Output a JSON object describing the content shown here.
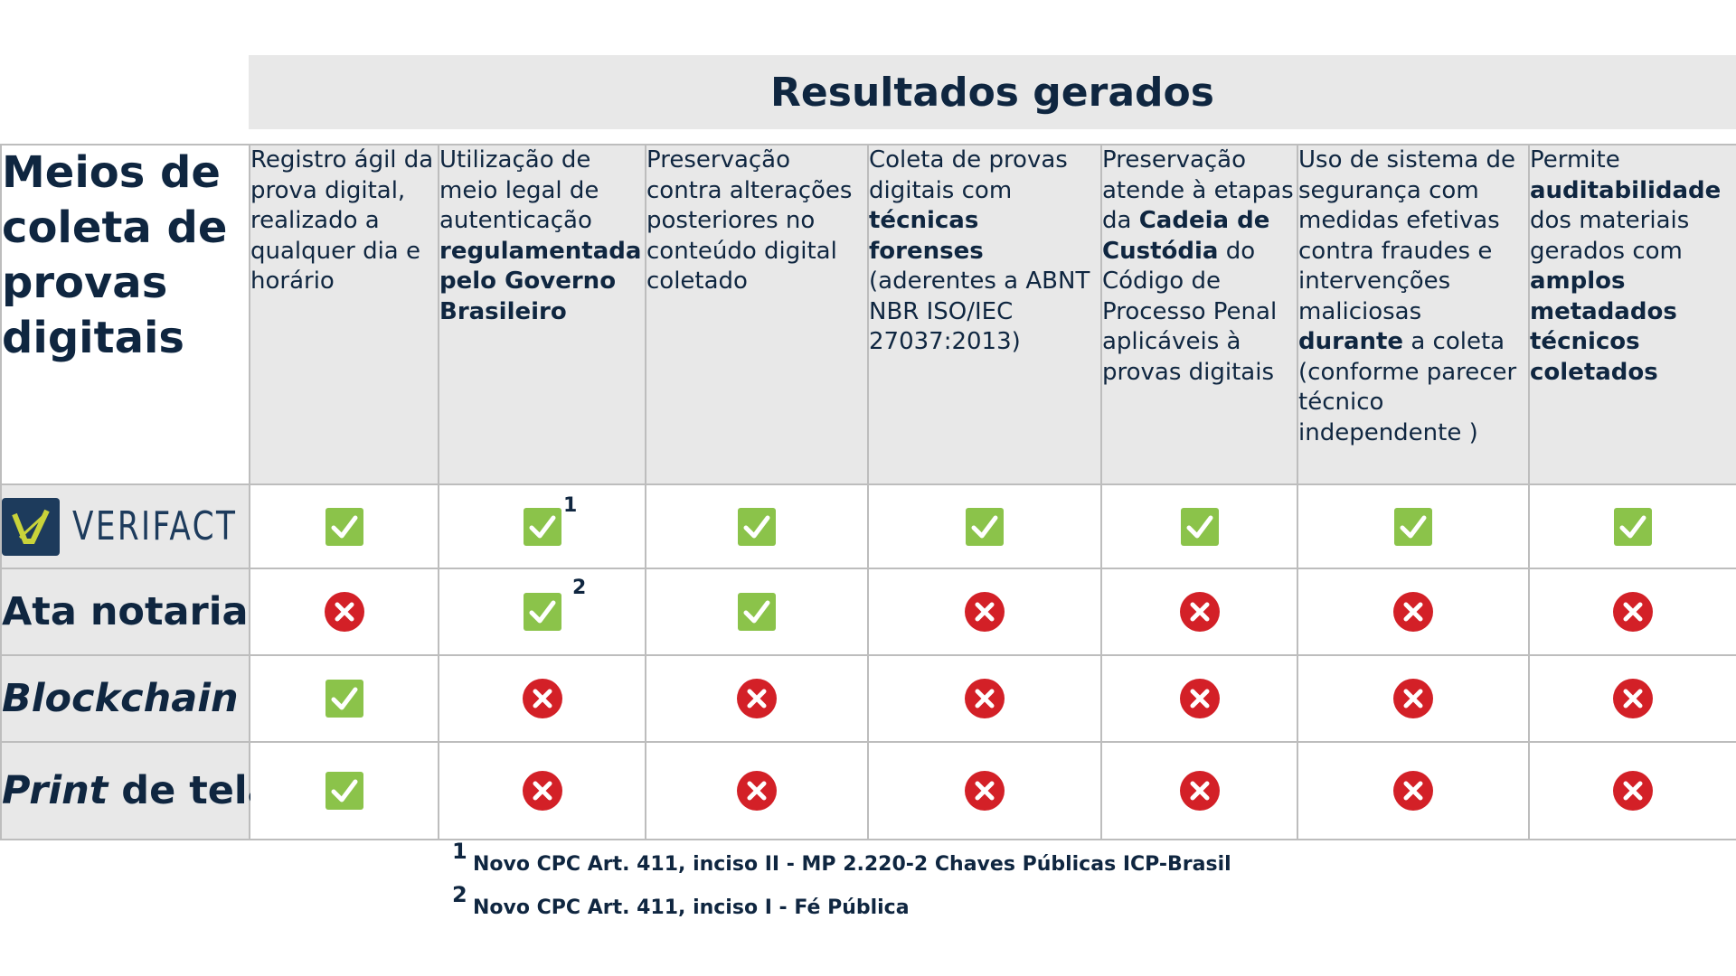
{
  "title": "Resultados gerados",
  "corner_label": "Meios de coleta de provas digitais",
  "columns": [
    [
      "Registro ágil da prova digital, realizado a qualquer dia e horário"
    ],
    [
      "Utilização de meio legal de autenticação ",
      "regulamentada pelo Governo Brasileiro"
    ],
    [
      "Preservação contra alterações posteriores no conteúdo digital coletado"
    ],
    [
      "Coleta de provas digitais com ",
      "técnicas forenses",
      " (aderentes a ABNT NBR ISO/IEC 27037:2013)"
    ],
    [
      "Preservação atende à etapas da ",
      "Cadeia de Custódia",
      " do Código de Processo Penal aplicáveis à provas digitais"
    ],
    [
      "Uso de sistema de segurança com medidas efetivas contra fraudes e intervenções maliciosas ",
      "durante",
      " a coleta (conforme parecer técnico independente )"
    ],
    [
      "Permite ",
      "auditabilidade",
      " dos materiais gerados com ",
      "amplos metadados técnicos coletados"
    ]
  ],
  "rows": [
    {
      "label": "VERIFACT",
      "values": [
        "check",
        "check",
        "check",
        "check",
        "check",
        "check",
        "check"
      ],
      "footnote_mark": "1"
    },
    {
      "label": "Ata notarial",
      "values": [
        "cross",
        "check",
        "check",
        "cross",
        "cross",
        "cross",
        "cross"
      ],
      "footnote_mark": "2"
    },
    {
      "label": "Blockchain",
      "values": [
        "check",
        "cross",
        "cross",
        "cross",
        "cross",
        "cross",
        "cross"
      ]
    },
    {
      "label_italic": "Print",
      "label_rest": " de tela",
      "values": [
        "check",
        "cross",
        "cross",
        "cross",
        "cross",
        "cross",
        "cross"
      ]
    }
  ],
  "footnotes": [
    {
      "num": "1",
      "text": "Novo CPC Art. 411, inciso II - MP 2.220-2 Chaves Públicas ICP-Brasil"
    },
    {
      "num": "2",
      "text": "Novo CPC Art. 411, inciso I - Fé Pública"
    }
  ],
  "colors": {
    "navy": "#0f2640",
    "check_green": "#8bc34a",
    "cross_red": "#d32027",
    "header_gray": "#e8e8e8"
  }
}
